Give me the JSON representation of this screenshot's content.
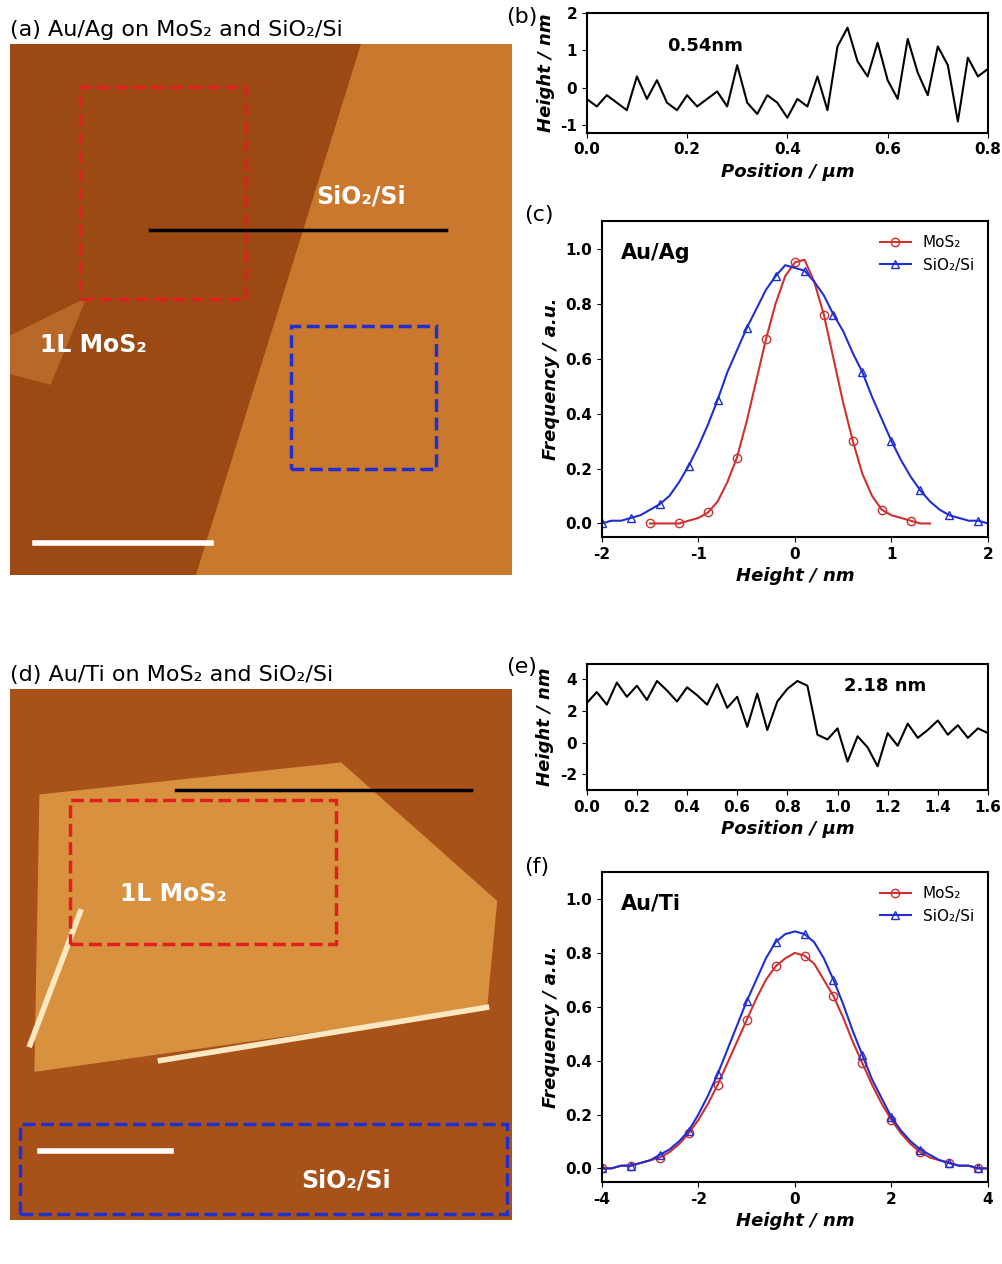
{
  "images": [
    {
      "panel_title": "(a) Au/Ag on MoS₂ and SiO₂/Si",
      "regions": [
        "1L MoS₂",
        "SiO₂/Si"
      ]
    },
    {
      "panel_title": "(d) Au/Ti on MoS₂ and SiO₂/Si",
      "regions": [
        "1L MoS₂",
        "SiO₂/Si"
      ]
    }
  ],
  "chart_data": [
    {
      "type": "line",
      "panel": "(b)",
      "xlabel": "Position / µm",
      "ylabel": "Height / nm",
      "annotations": [
        "0.54nm"
      ],
      "color": "#000000",
      "x": [
        0.0,
        0.02,
        0.04,
        0.06,
        0.08,
        0.1,
        0.12,
        0.14,
        0.16,
        0.18,
        0.2,
        0.22,
        0.24,
        0.26,
        0.28,
        0.3,
        0.32,
        0.34,
        0.36,
        0.38,
        0.4,
        0.42,
        0.44,
        0.46,
        0.48,
        0.5,
        0.52,
        0.54,
        0.56,
        0.58,
        0.6,
        0.62,
        0.64,
        0.66,
        0.68,
        0.7,
        0.72,
        0.74,
        0.76,
        0.78,
        0.8
      ],
      "values": [
        -0.3,
        -0.5,
        -0.2,
        -0.4,
        -0.6,
        0.3,
        -0.3,
        0.2,
        -0.4,
        -0.6,
        -0.2,
        -0.5,
        -0.3,
        -0.1,
        -0.5,
        0.6,
        -0.4,
        -0.7,
        -0.2,
        -0.4,
        -0.8,
        -0.3,
        -0.5,
        0.3,
        -0.6,
        1.1,
        1.6,
        0.7,
        0.3,
        1.2,
        0.2,
        -0.3,
        1.3,
        0.4,
        -0.2,
        1.1,
        0.6,
        -0.9,
        0.8,
        0.3,
        0.5
      ],
      "xlim": [
        0.0,
        0.8
      ],
      "xticks": [
        0.0,
        0.2,
        0.4,
        0.6,
        0.8
      ],
      "ylim": [
        -1.2,
        2
      ],
      "yticks": [
        -1,
        0,
        1,
        2
      ]
    },
    {
      "type": "line",
      "panel": "(c)",
      "xlabel": "Height / nm",
      "ylabel": "Frequency / a.u.",
      "annotations": [
        "Au/Ag"
      ],
      "legend": "upper right",
      "series": [
        {
          "name": "MoS₂",
          "color": "#d03030",
          "marker": "o",
          "x": [
            -1.5,
            -1.4,
            -1.3,
            -1.2,
            -1.1,
            -1.0,
            -0.9,
            -0.8,
            -0.7,
            -0.6,
            -0.5,
            -0.4,
            -0.3,
            -0.2,
            -0.1,
            0.0,
            0.1,
            0.2,
            0.3,
            0.4,
            0.5,
            0.6,
            0.7,
            0.8,
            0.9,
            1.0,
            1.1,
            1.2,
            1.3,
            1.4
          ],
          "values": [
            0,
            0,
            0,
            0,
            0.01,
            0.02,
            0.04,
            0.08,
            0.15,
            0.24,
            0.37,
            0.52,
            0.67,
            0.8,
            0.9,
            0.95,
            0.96,
            0.88,
            0.76,
            0.6,
            0.44,
            0.3,
            0.18,
            0.1,
            0.05,
            0.03,
            0.02,
            0.01,
            0,
            0
          ]
        },
        {
          "name": "SiO₂/Si",
          "color": "#2030d0",
          "marker": "^",
          "x": [
            -2.0,
            -1.9,
            -1.8,
            -1.7,
            -1.6,
            -1.5,
            -1.4,
            -1.3,
            -1.2,
            -1.1,
            -1.0,
            -0.9,
            -0.8,
            -0.7,
            -0.6,
            -0.5,
            -0.4,
            -0.3,
            -0.2,
            -0.1,
            0.0,
            0.1,
            0.2,
            0.3,
            0.4,
            0.5,
            0.6,
            0.7,
            0.8,
            0.9,
            1.0,
            1.1,
            1.2,
            1.3,
            1.4,
            1.5,
            1.6,
            1.7,
            1.8,
            1.9,
            2.0
          ],
          "values": [
            0,
            0.01,
            0.01,
            0.02,
            0.03,
            0.05,
            0.07,
            0.1,
            0.15,
            0.21,
            0.28,
            0.36,
            0.45,
            0.55,
            0.63,
            0.71,
            0.78,
            0.85,
            0.9,
            0.94,
            0.93,
            0.92,
            0.88,
            0.83,
            0.76,
            0.7,
            0.62,
            0.55,
            0.46,
            0.38,
            0.3,
            0.23,
            0.17,
            0.12,
            0.08,
            0.05,
            0.03,
            0.02,
            0.01,
            0.01,
            0
          ]
        }
      ],
      "xlim": [
        -2,
        2
      ],
      "xticks": [
        -2,
        -1,
        0,
        1,
        2
      ],
      "ylim": [
        -0.05,
        1.1
      ],
      "yticks": [
        0.0,
        0.2,
        0.4,
        0.6,
        0.8,
        1.0
      ]
    },
    {
      "type": "line",
      "panel": "(e)",
      "xlabel": "Position / µm",
      "ylabel": "Height / nm",
      "annotations": [
        "2.18 nm"
      ],
      "color": "#000000",
      "x": [
        0.0,
        0.04,
        0.08,
        0.12,
        0.16,
        0.2,
        0.24,
        0.28,
        0.32,
        0.36,
        0.4,
        0.44,
        0.48,
        0.52,
        0.56,
        0.6,
        0.64,
        0.68,
        0.72,
        0.76,
        0.8,
        0.84,
        0.88,
        0.92,
        0.96,
        1.0,
        1.04,
        1.08,
        1.12,
        1.16,
        1.2,
        1.24,
        1.28,
        1.32,
        1.36,
        1.4,
        1.44,
        1.48,
        1.52,
        1.56,
        1.6
      ],
      "values": [
        2.5,
        3.2,
        2.4,
        3.8,
        2.9,
        3.6,
        2.7,
        3.9,
        3.3,
        2.6,
        3.5,
        3.0,
        2.4,
        3.7,
        2.2,
        2.9,
        1.0,
        3.1,
        0.8,
        2.6,
        3.4,
        3.9,
        3.6,
        0.5,
        0.2,
        0.9,
        -1.2,
        0.4,
        -0.3,
        -1.5,
        0.6,
        -0.2,
        1.2,
        0.3,
        0.8,
        1.4,
        0.5,
        1.1,
        0.3,
        0.9,
        0.6
      ],
      "xlim": [
        0.0,
        1.6
      ],
      "xticks": [
        0.0,
        0.2,
        0.4,
        0.6,
        0.8,
        1.0,
        1.2,
        1.4,
        1.6
      ],
      "ylim": [
        -3,
        5
      ],
      "yticks": [
        -2,
        0,
        2,
        4
      ]
    },
    {
      "type": "line",
      "panel": "(f)",
      "xlabel": "Height / nm",
      "ylabel": "Frequency / a.u.",
      "annotations": [
        "Au/Ti"
      ],
      "legend": "upper right",
      "series": [
        {
          "name": "MoS₂",
          "color": "#d03030",
          "marker": "o",
          "x": [
            -4.0,
            -3.8,
            -3.6,
            -3.4,
            -3.2,
            -3.0,
            -2.8,
            -2.6,
            -2.4,
            -2.2,
            -2.0,
            -1.8,
            -1.6,
            -1.4,
            -1.2,
            -1.0,
            -0.8,
            -0.6,
            -0.4,
            -0.2,
            0.0,
            0.2,
            0.4,
            0.6,
            0.8,
            1.0,
            1.2,
            1.4,
            1.6,
            1.8,
            2.0,
            2.2,
            2.4,
            2.6,
            2.8,
            3.0,
            3.2,
            3.4,
            3.6,
            3.8,
            4.0
          ],
          "values": [
            0,
            0,
            0.01,
            0.01,
            0.02,
            0.03,
            0.04,
            0.06,
            0.09,
            0.13,
            0.18,
            0.24,
            0.31,
            0.39,
            0.47,
            0.55,
            0.63,
            0.7,
            0.75,
            0.78,
            0.8,
            0.79,
            0.76,
            0.7,
            0.64,
            0.56,
            0.47,
            0.39,
            0.31,
            0.24,
            0.18,
            0.13,
            0.09,
            0.06,
            0.04,
            0.03,
            0.02,
            0.01,
            0.01,
            0,
            0
          ]
        },
        {
          "name": "SiO₂/Si",
          "color": "#2030d0",
          "marker": "^",
          "x": [
            -4.0,
            -3.8,
            -3.6,
            -3.4,
            -3.2,
            -3.0,
            -2.8,
            -2.6,
            -2.4,
            -2.2,
            -2.0,
            -1.8,
            -1.6,
            -1.4,
            -1.2,
            -1.0,
            -0.8,
            -0.6,
            -0.4,
            -0.2,
            0.0,
            0.2,
            0.4,
            0.6,
            0.8,
            1.0,
            1.2,
            1.4,
            1.6,
            1.8,
            2.0,
            2.2,
            2.4,
            2.6,
            2.8,
            3.0,
            3.2,
            3.4,
            3.6,
            3.8,
            4.0
          ],
          "values": [
            0,
            0,
            0.01,
            0.01,
            0.02,
            0.03,
            0.05,
            0.07,
            0.1,
            0.14,
            0.2,
            0.27,
            0.35,
            0.44,
            0.53,
            0.62,
            0.7,
            0.78,
            0.84,
            0.87,
            0.88,
            0.87,
            0.84,
            0.78,
            0.7,
            0.61,
            0.51,
            0.42,
            0.33,
            0.26,
            0.19,
            0.14,
            0.1,
            0.07,
            0.05,
            0.03,
            0.02,
            0.01,
            0.01,
            0,
            0
          ]
        }
      ],
      "xlim": [
        -4,
        4
      ],
      "xticks": [
        -4,
        -2,
        0,
        2,
        4
      ],
      "ylim": [
        -0.05,
        1.1
      ],
      "yticks": [
        0.0,
        0.2,
        0.4,
        0.6,
        0.8,
        1.0
      ]
    }
  ]
}
